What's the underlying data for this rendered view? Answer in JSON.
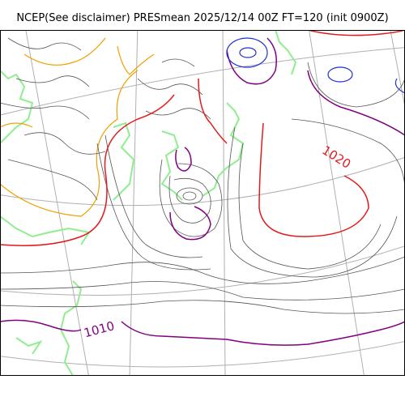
{
  "title": "NCEP(See disclaimer) PRESmean 2025/12/14 00Z FT=120 (init 0900Z)",
  "contour_labels": [
    "1020",
    "1010"
  ],
  "colors": {
    "isobar": "#555555",
    "isobar_1020": "#e31a1c",
    "isobar_1010": "#800080",
    "low_center": "#1f2fd6",
    "high_ground": "#f0a000",
    "coastline": "#90ee90",
    "graticule": "#b0b0b0",
    "frame": "#000000"
  }
}
